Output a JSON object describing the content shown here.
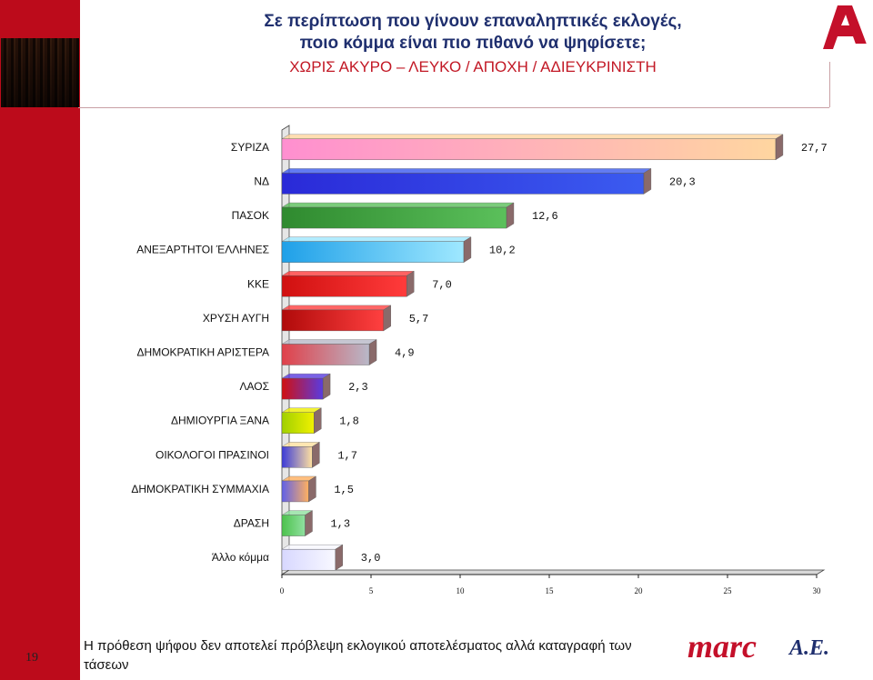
{
  "header": {
    "title_line1": "Σε περίπτωση που γίνουν επαναληπτικές εκλογές,",
    "title_line2": "ποιο κόμμα είναι πιο πιθανό να ψηφίσετε;",
    "title_line3": "ΧΩΡΙΣ ΑΚΥΡΟ – ΛΕΥΚΟ / ΑΠΟΧΗ / ΑΔΙΕΥΚΡΙΝΙΣΤΗ"
  },
  "logo": {
    "brand": "ALPHA",
    "color": "#c4102a"
  },
  "footer": {
    "note": "Η πρόθεση ψήφου δεν αποτελεί πρόβλεψη εκλογικού αποτελέσματος αλλά καταγραφή των τάσεων",
    "page_number": "19",
    "company": "marc",
    "company_suffix": "A.E."
  },
  "colors": {
    "sidebar": "#bc0b1b",
    "title_blue": "#1f2f6e",
    "title_red": "#c21825"
  },
  "chart_data": {
    "type": "bar",
    "orientation": "horizontal",
    "categories": [
      "ΣΥΡΙΖΑ",
      "ΝΔ",
      "ΠΑΣΟΚ",
      "ΑΝΕΞΑΡΤΗΤΟΙ ΈΛΛΗΝΕΣ",
      "ΚΚΕ",
      "ΧΡΥΣΗ ΑΥΓΗ",
      "ΔΗΜΟΚΡΑΤΙΚΗ ΑΡΙΣΤΕΡΑ",
      "ΛΑΟΣ",
      "ΔΗΜΙΟΥΡΓΙΑ ΞΑΝΑ",
      "ΟΙΚΟΛΟΓΟΙ ΠΡΑΣΙΝΟΙ",
      "ΔΗΜΟΚΡΑΤΙΚΗ ΣΥΜΜΑΧΙΑ",
      "ΔΡΑΣΗ",
      "Άλλο κόμμα"
    ],
    "values": [
      27.7,
      20.3,
      12.6,
      10.2,
      7.0,
      5.7,
      4.9,
      2.3,
      1.8,
      1.7,
      1.5,
      1.3,
      3.0
    ],
    "value_labels": [
      "27,7",
      "20,3",
      "12,6",
      "10,2",
      "7,0",
      "5,7",
      "4,9",
      "2,3",
      "1,8",
      "1,7",
      "1,5",
      "1,3",
      "3,0"
    ],
    "colors": [
      [
        "#ff8fd0",
        "#ffd6a0"
      ],
      [
        "#2a2ad8",
        "#3b5bf0"
      ],
      [
        "#2f8a2f",
        "#5bc05b"
      ],
      [
        "#1fa0e8",
        "#9fe8ff"
      ],
      [
        "#d01010",
        "#ff3b3b"
      ],
      [
        "#b00a0a",
        "#ff4040"
      ],
      [
        "#e0404a",
        "#b8b8c8"
      ],
      [
        "#d01010",
        "#5a3be0"
      ],
      [
        "#a0d000",
        "#f0f000"
      ],
      [
        "#3b3bd8",
        "#ffe0a0"
      ],
      [
        "#6060e8",
        "#ffb060"
      ],
      [
        "#4cc24c",
        "#90e0a0"
      ],
      [
        "#d8d8ff",
        "#f8f8ff"
      ]
    ],
    "xlim": [
      0,
      30
    ],
    "xticks": [
      "0",
      "5",
      "10",
      "15",
      "20",
      "25",
      "30"
    ],
    "grid": false,
    "legend": "none"
  }
}
